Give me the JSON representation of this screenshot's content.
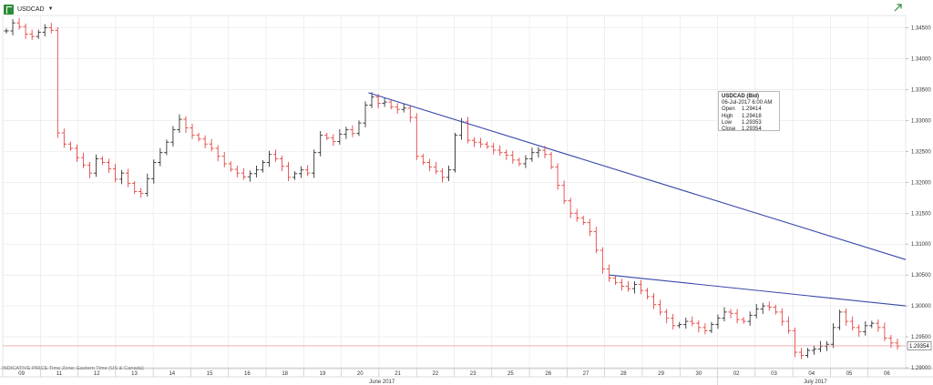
{
  "header": {
    "symbol": "USDCAD"
  },
  "tooltip": {
    "title": "USDCAD (Bid)",
    "date": "06-Jul-2017 6:00 AM",
    "rows": [
      {
        "label": "Open",
        "value": "1.29414"
      },
      {
        "label": "High",
        "value": "1.29418"
      },
      {
        "label": "Low",
        "value": "1.29353"
      },
      {
        "label": "Close",
        "value": "1.29354"
      }
    ]
  },
  "footer": {
    "text": "INDICATIVE PRICE   Time Zone: Eastern Time (US & Canada)"
  },
  "colors": {
    "up": "#1a1a1a",
    "down": "#e0302e",
    "trend": "#3948a8",
    "last": "#e88080",
    "grid": "#e6e6e6"
  },
  "chart_data": {
    "type": "line",
    "ylim": [
      1.29,
      1.347
    ],
    "yticks": [
      "1.34500",
      "1.34000",
      "1.33500",
      "1.33000",
      "1.32500",
      "1.32000",
      "1.31500",
      "1.31000",
      "1.30500",
      "1.30000",
      "1.29500",
      "1.29000"
    ],
    "last_price": "1.29354",
    "day_labels": [
      "09",
      "11",
      "12",
      "13",
      "14",
      "15",
      "16",
      "18",
      "19",
      "20",
      "21",
      "22",
      "23",
      "25",
      "26",
      "27",
      "28",
      "29",
      "30",
      "02",
      "03",
      "04",
      "05",
      "06"
    ],
    "month_labels": [
      "June 2017",
      "July 2017"
    ],
    "series": [
      {
        "values": [
          1.3445,
          1.3458,
          1.3452,
          1.344,
          1.3436,
          1.3443,
          1.345,
          1.3446,
          1.328,
          1.3262,
          1.3255,
          1.324,
          1.3228,
          1.3215,
          1.3238,
          1.3232,
          1.3222,
          1.3205,
          1.3215,
          1.3198,
          1.3185,
          1.3182,
          1.3206,
          1.3232,
          1.3248,
          1.3265,
          1.3285,
          1.3302,
          1.3288,
          1.3276,
          1.327,
          1.3262,
          1.3255,
          1.3242,
          1.323,
          1.3221,
          1.3215,
          1.3209,
          1.3214,
          1.322,
          1.3232,
          1.3245,
          1.3238,
          1.3226,
          1.3208,
          1.3214,
          1.322,
          1.3215,
          1.3248,
          1.3276,
          1.3272,
          1.3266,
          1.3278,
          1.3285,
          1.3279,
          1.3296,
          1.3325,
          1.3338,
          1.3328,
          1.333,
          1.3322,
          1.3318,
          1.332,
          1.3305,
          1.3242,
          1.3232,
          1.3225,
          1.3218,
          1.3208,
          1.322,
          1.3276,
          1.3298,
          1.3268,
          1.3265,
          1.3262,
          1.3258,
          1.3252,
          1.3248,
          1.3244,
          1.3236,
          1.323,
          1.3238,
          1.3248,
          1.3252,
          1.3245,
          1.3225,
          1.3195,
          1.317,
          1.315,
          1.3142,
          1.3135,
          1.312,
          1.309,
          1.306,
          1.3045,
          1.3038,
          1.3032,
          1.3028,
          1.3035,
          1.3025,
          1.3015,
          1.3002,
          1.299,
          1.298,
          1.2968,
          1.297,
          1.2975,
          1.2972,
          1.2965,
          1.296,
          1.297,
          1.298,
          1.299,
          1.2988,
          1.2978,
          1.2975,
          1.2985,
          1.2995,
          1.3,
          1.2998,
          1.299,
          1.2975,
          1.296,
          1.2925,
          1.292,
          1.2928,
          1.293,
          1.2935,
          1.2938,
          1.2965,
          1.299,
          1.2975,
          1.2965,
          1.2958,
          1.2968,
          1.2972,
          1.2965,
          1.2948,
          1.294,
          1.2935
        ]
      }
    ],
    "trendlines": [
      {
        "x1": 0.405,
        "y1": 1.3345,
        "x2": 1.0,
        "y2": 1.3075
      },
      {
        "x1": 0.672,
        "y1": 1.305,
        "x2": 1.0,
        "y2": 1.3
      }
    ]
  }
}
